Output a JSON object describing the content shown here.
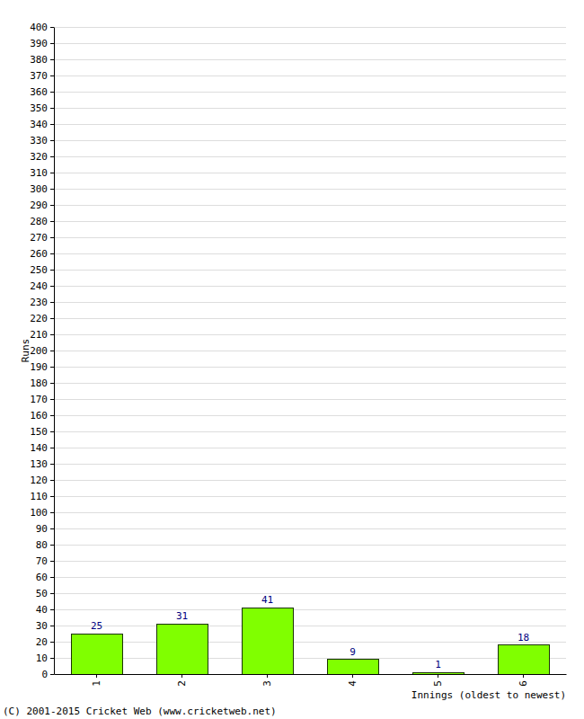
{
  "chart_data": {
    "type": "bar",
    "x_label": "Innings (oldest to newest)",
    "y_label": "Runs",
    "annotations": [
      "(C) 2001-2015 Cricket Web (www.cricketweb.net)"
    ],
    "categories": [
      "1",
      "2",
      "3",
      "4",
      "5",
      "6"
    ],
    "values": [
      25,
      31,
      41,
      9,
      1,
      18
    ],
    "color": "#80ff00",
    "data_labels": true,
    "grid": true,
    "ylim": [
      0,
      400
    ],
    "yticks": [
      0,
      10,
      20,
      30,
      40,
      50,
      60,
      70,
      80,
      90,
      100,
      110,
      120,
      130,
      140,
      150,
      160,
      170,
      180,
      190,
      200,
      210,
      220,
      230,
      240,
      250,
      260,
      270,
      280,
      290,
      300,
      310,
      320,
      330,
      340,
      350,
      360,
      370,
      380,
      390,
      400
    ]
  }
}
